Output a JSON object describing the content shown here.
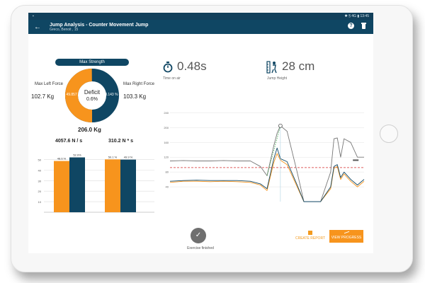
{
  "status_bar": {
    "right": "✱ § 4G ▮ 13:45"
  },
  "app_bar": {
    "title": "Jump Analysis - Counter Movement Jump",
    "subtitle": "Greco, Benoit , 15"
  },
  "strength": {
    "header": "Max Strength",
    "deficit_label": "Deficit",
    "deficit_value": "0.6%",
    "left_pct": "49.857 %",
    "right_pct": "50.143 %",
    "left_label": "Max Left Force",
    "left_value": "102.7 Kg",
    "right_label": "Max Right Force",
    "right_value": "103.3 Kg",
    "total": "206.0 Kg",
    "split": {
      "left": 49.857,
      "right": 50.143
    }
  },
  "metrics": {
    "time_value": "0.48s",
    "time_label": "Time on air",
    "height_value": "28 cm",
    "height_label": "Jump Height"
  },
  "bars": {
    "ticks": [
      "10",
      "20",
      "30",
      "40",
      "50"
    ],
    "group_a": {
      "label": "4057.6 N / s",
      "left_label": "48.6 %",
      "right_label": "52.0%",
      "left": 48.6,
      "right": 52.0
    },
    "group_b": {
      "label": "310.2 N * s",
      "left_label": "50.1 %",
      "right_label": "49.9 %",
      "left": 50.1,
      "right": 49.9
    }
  },
  "colors": {
    "left": "#f7941d",
    "right": "#0f4663",
    "total": "#777777",
    "threshold": "#d62828",
    "dotted": "#3aa64a",
    "appbar": "#0f4663"
  },
  "force_chart": {
    "yticks": [
      "40",
      "80",
      "120",
      "160",
      "200",
      "240"
    ],
    "ymin": 0,
    "ymax": 260,
    "threshold": 92,
    "x": [
      0,
      8,
      16,
      24,
      32,
      40,
      48,
      54,
      58,
      62,
      64,
      66,
      70,
      76,
      80,
      84,
      90,
      96,
      98,
      100,
      102,
      104,
      108,
      112,
      116
    ],
    "total": [
      110,
      111,
      110,
      110,
      111,
      110,
      110,
      95,
      70,
      150,
      185,
      205,
      190,
      80,
      0,
      0,
      0,
      80,
      170,
      172,
      120,
      170,
      160,
      120,
      120
    ],
    "left": [
      52,
      55,
      55,
      54,
      55,
      54,
      52,
      45,
      30,
      105,
      130,
      112,
      100,
      40,
      0,
      0,
      0,
      35,
      90,
      95,
      60,
      75,
      55,
      40,
      55
    ],
    "right": [
      55,
      57,
      58,
      57,
      57,
      57,
      55,
      48,
      35,
      115,
      145,
      116,
      108,
      45,
      0,
      0,
      0,
      40,
      95,
      100,
      65,
      80,
      60,
      45,
      60
    ],
    "dotted": {
      "x": [
        58,
        66
      ],
      "y": [
        70,
        205
      ]
    },
    "peak": {
      "x": 66,
      "y": 205
    },
    "right_marker": {
      "x": 111,
      "y": 112
    }
  },
  "footer": {
    "finished": "Exercise finished",
    "create_report": "CREATE REPORT",
    "view_progress": "VIEW PROGRESS"
  }
}
